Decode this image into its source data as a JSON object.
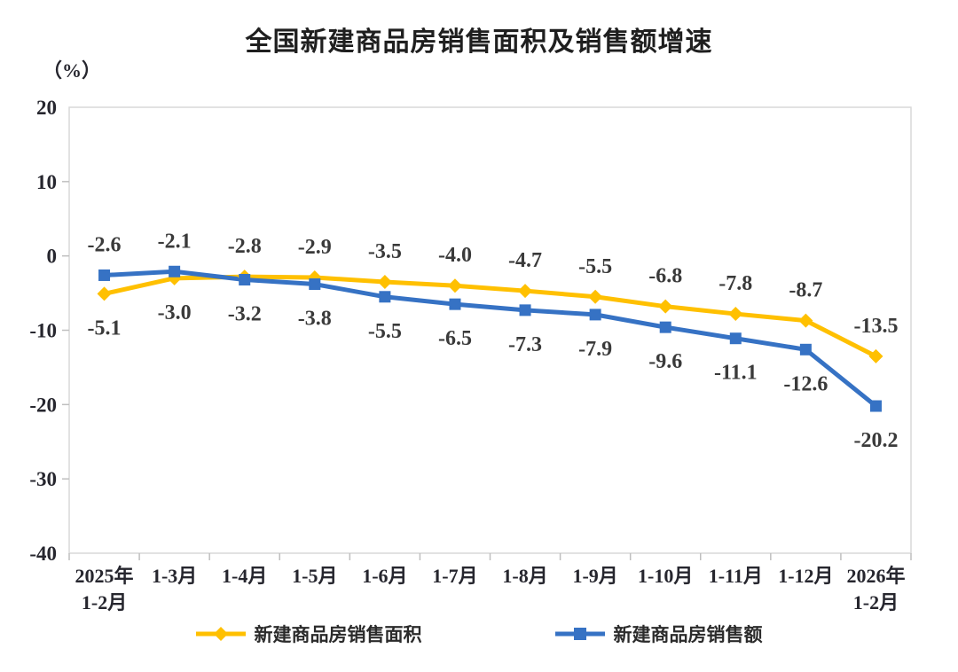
{
  "chart_data": {
    "type": "line",
    "title": "全国新建商品房销售面积及销售额增速",
    "ylabel": "（%）",
    "categories": [
      "2025年\n1-2月",
      "1-3月",
      "1-4月",
      "1-5月",
      "1-6月",
      "1-7月",
      "1-8月",
      "1-9月",
      "1-10月",
      "1-11月",
      "1-12月",
      "2026年\n1-2月"
    ],
    "series": [
      {
        "name": "新建商品房销售面积",
        "marker": "diamond",
        "color": "#FFC000",
        "values": [
          -5.1,
          -3.0,
          -2.8,
          -2.9,
          -3.5,
          -4.0,
          -4.7,
          -5.5,
          -6.8,
          -7.8,
          -8.7,
          -13.5
        ]
      },
      {
        "name": "新建商品房销售额",
        "marker": "square",
        "color": "#3672C4",
        "values": [
          -2.6,
          -2.1,
          -3.2,
          -3.8,
          -5.5,
          -6.5,
          -7.3,
          -7.9,
          -9.6,
          -11.1,
          -12.6,
          -20.2
        ]
      }
    ],
    "y_axis": {
      "min": -40,
      "max": 20,
      "tick_step": 10,
      "ticks": [
        20,
        10,
        0,
        -10,
        -20,
        -30,
        -40
      ]
    },
    "grid": false,
    "legend_position": "bottom",
    "plot_border_color": "#d9d9d9",
    "tick_color": "#bfbfbf"
  }
}
